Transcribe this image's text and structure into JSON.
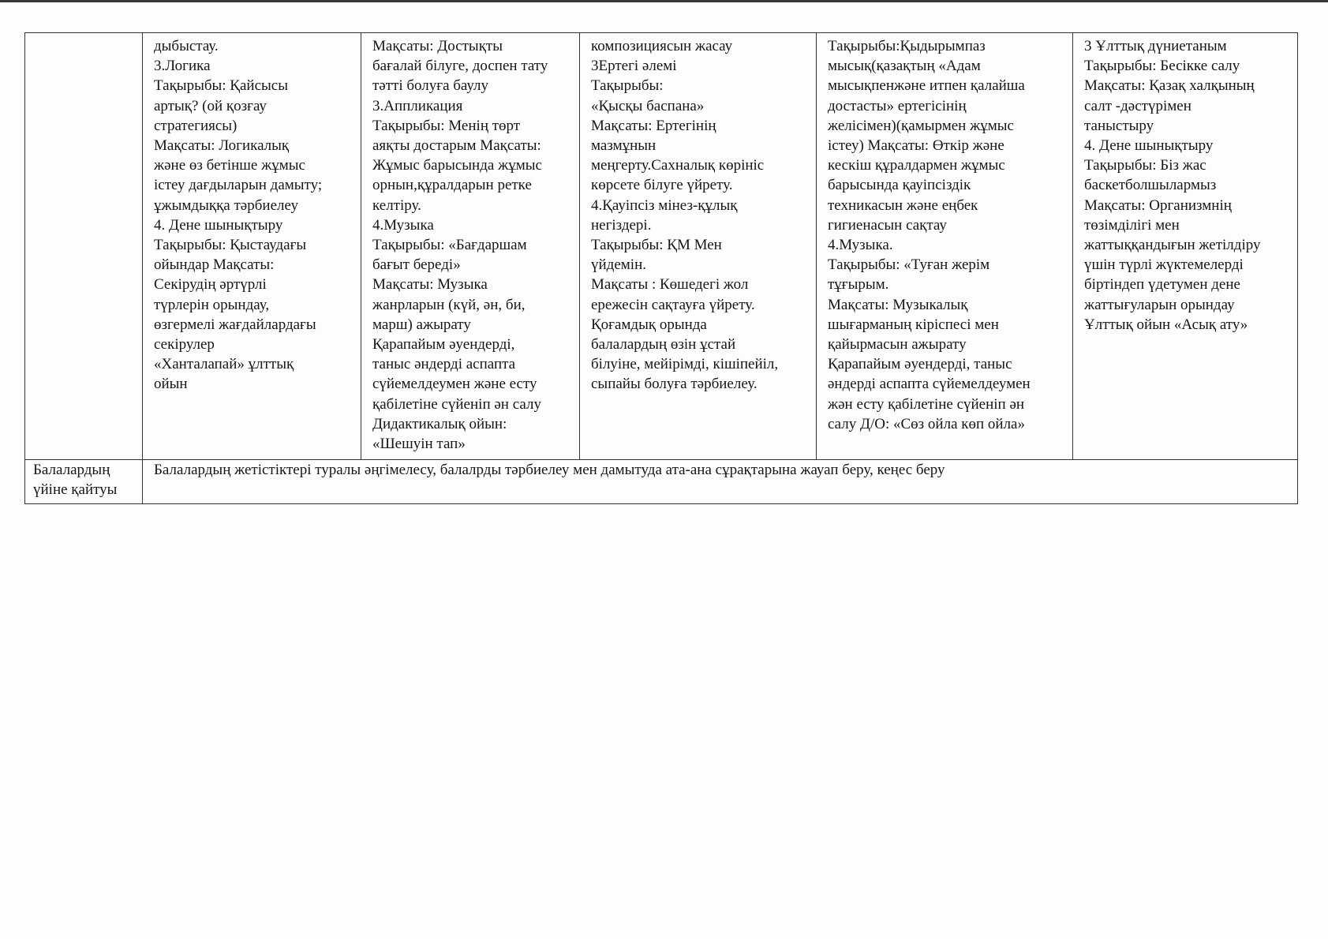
{
  "table": {
    "row1": {
      "label": [],
      "cells": [
        [
          "дыбыстау.",
          "3.Логика",
          "Тақырыбы: Қайсысы",
          "артық? (ой қозғау",
          "стратегиясы)",
          "Мақсаты: Логикалық",
          "және  өз бетінше жұмыс",
          "істеу дағдыларын дамыту;",
          "ұжымдыққа тәрбиелеу",
          "4. Дене шынықтыру",
          "Тақырыбы: Қыстаудағы",
          "ойындар Мақсаты:",
          "Секірудің әртүрлі",
          "түрлерін орындау,",
          "өзгермелі жағдайлардағы",
          "секірулер",
          "«Ханталапай» ұлттық",
          "ойын"
        ],
        [
          "Мақсаты: Достықты",
          "бағалай білуге, доспен тату",
          "тәтті болуға баулу",
          "3.Аппликация",
          "Тақырыбы: Менің төрт",
          "аяқты достарым Мақсаты:",
          "Жұмыс барысында жұмыс",
          "орнын,құралдарын ретке",
          "келтіру.",
          "4.Музыка",
          "Тақырыбы: «Бағдаршам",
          "бағыт береді»",
          "Мақсаты: Музыка",
          "жанрларын (күй, ән, би,",
          "марш) ажырату",
          "Қарапайым әуендерді,",
          "таныс әндерді аспапта",
          "сүйемелдеумен және есту",
          "қабілетіне сүйеніп ән салу",
          "Дидактикалық ойын:",
          "«Шешуін тап»"
        ],
        [
          "композициясын жасау",
          "3Ертегі әлемі",
          "Тақырыбы:",
          "«Қысқы баспана»",
          "Мақсаты: Ертегінің",
          "мазмұнын",
          "меңгерту.Сахналық көрініс",
          "көрсете білуге үйрету.",
          "4.Қауіпсіз мінез-құлық",
          "негіздері.",
          "Тақырыбы: ҚМ Мен",
          "үйдемін.",
          "Мақсаты : Көшедегі жол",
          "ережесін сақтауға үйрету.",
          "Қоғамдық орында",
          "балалардың өзін ұстай",
          "білуіне, мейірімді, кішіпейіл,",
          "сыпайы болуға тәрбиелеу."
        ],
        [
          "Тақырыбы:Қыдырымпаз",
          "мысық(қазақтың «Адам",
          "мысықпенжәне итпен қалайша",
          "достасты» ертегісінің",
          "желісімен)(қамырмен жұмыс",
          "істеу) Мақсаты: Өткір және",
          "кескіш құралдармен жұмыс",
          "барысында қауіпсіздік",
          "техникасын және еңбек",
          "гигиенасын сақтау",
          "4.Музыка.",
          "Тақырыбы: «Туған жерім",
          "тұғырым.",
          "Мақсаты: Музыкалық",
          "шығарманың кіріспесі мен",
          "қайырмасын ажырату",
          "Қарапайым әуендерді, таныс",
          "әндерді аспапта сүйемелдеумен",
          "жән есту қабілетіне сүйеніп ән",
          "салу Д/О: «Сөз ойла көп ойла»"
        ],
        [
          "3 Ұлттық дүниетаным",
          "Тақырыбы: Бесікке салу",
          "Мақсаты: Қазақ халқының",
          "салт -дәстүрімен",
          "таныстыру",
          "4. Дене шынықтыру",
          "Тақырыбы: Біз жас",
          "баскетболшылармыз",
          "Мақсаты: Организмнің",
          "төзімділігі мен",
          "жаттыққандығын жетілдіру",
          "үшін түрлі жүктемелерді",
          "біртіндеп үдетумен дене",
          "жаттығуларын орындау",
          "Ұлттық ойын «Асық ату»"
        ]
      ]
    },
    "row2": {
      "label": [
        "Балалардың",
        "үйіне  қайтуы"
      ],
      "text": "Балалардың жетістіктері туралы әңгімелесу, балалрды тәрбиелеу мен дамытуда ата-ана сұрақтарына жауап беру, кеңес беру"
    }
  }
}
